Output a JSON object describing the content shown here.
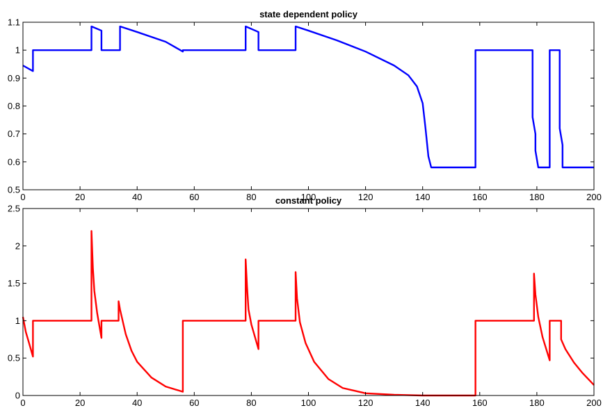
{
  "chart_data": [
    {
      "type": "line",
      "title": "state dependent policy",
      "xlabel": "",
      "ylabel": "",
      "xlim": [
        0,
        200
      ],
      "ylim": [
        0.5,
        1.1
      ],
      "xticks": [
        0,
        20,
        40,
        60,
        80,
        100,
        120,
        140,
        160,
        180,
        200
      ],
      "yticks": [
        0.5,
        0.6,
        0.7,
        0.8,
        0.9,
        1,
        1.1
      ],
      "xtick_labels": [
        "0",
        "20",
        "40",
        "60",
        "80",
        "100",
        "120",
        "140",
        "160",
        "180",
        "200"
      ],
      "ytick_labels": [
        "0.5",
        "0.6",
        "0.7",
        "0.8",
        "0.9",
        "1",
        "1.1"
      ],
      "grid": false,
      "series": [
        {
          "color": "#0000ff",
          "x": [
            0,
            3.5,
            3.5,
            24,
            24,
            27.5,
            27.5,
            34,
            34,
            40,
            50,
            56,
            56,
            78,
            78,
            82.5,
            82.5,
            95.5,
            95.5,
            100,
            110,
            120,
            130,
            135,
            138,
            140,
            141,
            142,
            143,
            158.5,
            158.5,
            178.5,
            178.5,
            179.5,
            179.5,
            180.5,
            184.5,
            184.5,
            188,
            188,
            189,
            189,
            200
          ],
          "y": [
            0.945,
            0.925,
            1.0,
            1.0,
            1.085,
            1.07,
            1.0,
            1.0,
            1.085,
            1.065,
            1.03,
            0.995,
            1.0,
            1.0,
            1.085,
            1.065,
            1.0,
            1.0,
            1.085,
            1.07,
            1.035,
            0.995,
            0.945,
            0.91,
            0.87,
            0.81,
            0.72,
            0.62,
            0.58,
            0.58,
            1.0,
            1.0,
            0.76,
            0.7,
            0.64,
            0.58,
            0.58,
            1.0,
            1.0,
            0.72,
            0.66,
            0.58,
            0.58
          ]
        }
      ]
    },
    {
      "type": "line",
      "title": "constant  policy",
      "xlabel": "",
      "ylabel": "",
      "xlim": [
        0,
        200
      ],
      "ylim": [
        0,
        2.5
      ],
      "xticks": [
        0,
        20,
        40,
        60,
        80,
        100,
        120,
        140,
        160,
        180,
        200
      ],
      "yticks": [
        0,
        0.5,
        1,
        1.5,
        2,
        2.5
      ],
      "xtick_labels": [
        "0",
        "20",
        "40",
        "60",
        "80",
        "100",
        "120",
        "140",
        "160",
        "180",
        "200"
      ],
      "ytick_labels": [
        "0",
        "0.5",
        "1",
        "1.5",
        "2",
        "2.5"
      ],
      "grid": false,
      "series": [
        {
          "color": "#ff0000",
          "x": [
            0,
            1,
            2,
            3.5,
            3.5,
            24,
            24,
            24.5,
            25,
            26,
            27.5,
            27.5,
            33.5,
            33.5,
            34,
            36,
            38,
            40,
            45,
            50,
            56,
            56,
            78,
            78,
            78.5,
            79,
            80,
            82.5,
            82.5,
            95.5,
            95.5,
            96,
            97,
            99,
            102,
            107,
            112,
            120,
            130,
            140,
            150,
            158.5,
            158.5,
            179,
            179,
            179.5,
            180.5,
            182,
            184.5,
            184.5,
            188.5,
            188.5,
            190,
            193,
            196,
            200
          ],
          "y": [
            1.05,
            0.85,
            0.72,
            0.52,
            1.0,
            1.0,
            2.2,
            1.7,
            1.4,
            1.1,
            0.77,
            1.0,
            1.0,
            1.26,
            1.15,
            0.82,
            0.6,
            0.45,
            0.24,
            0.12,
            0.05,
            1.0,
            1.0,
            1.82,
            1.45,
            1.15,
            0.95,
            0.62,
            1.0,
            1.0,
            1.65,
            1.3,
            0.98,
            0.7,
            0.45,
            0.22,
            0.1,
            0.03,
            0.01,
            0.0,
            0.0,
            0.0,
            1.0,
            1.0,
            1.63,
            1.35,
            1.05,
            0.78,
            0.47,
            1.0,
            1.0,
            0.75,
            0.62,
            0.44,
            0.3,
            0.14
          ]
        }
      ]
    }
  ]
}
